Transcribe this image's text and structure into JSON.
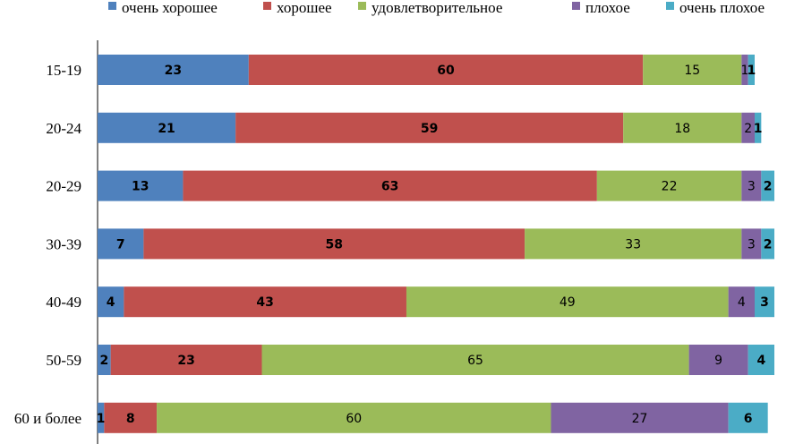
{
  "chart_data": {
    "type": "bar",
    "orientation": "horizontal",
    "stacked": true,
    "categories": [
      "15-19",
      "20-24",
      "20-29",
      "30-39",
      "40-49",
      "50-59",
      "60 и более"
    ],
    "series": [
      {
        "name": "очень хорошее",
        "color": "#4f81bd",
        "label_bold": true,
        "values": [
          23,
          21,
          13,
          7,
          4,
          2,
          1
        ]
      },
      {
        "name": "хорошее",
        "color": "#c0504d",
        "label_bold": true,
        "values": [
          60,
          59,
          63,
          58,
          43,
          23,
          8
        ]
      },
      {
        "name": "удовлетворительное",
        "color": "#9bbb59",
        "label_bold": false,
        "values": [
          15,
          18,
          22,
          33,
          49,
          65,
          60
        ]
      },
      {
        "name": "плохое",
        "color": "#8064a2",
        "label_bold": false,
        "values": [
          1,
          2,
          3,
          3,
          4,
          9,
          27
        ]
      },
      {
        "name": "очень плохое",
        "color": "#4bacc6",
        "label_bold": true,
        "values": [
          1,
          1,
          2,
          2,
          3,
          4,
          6
        ]
      }
    ],
    "title": "",
    "xlabel": "",
    "ylabel": "",
    "legend_position": "top",
    "grid": false
  }
}
